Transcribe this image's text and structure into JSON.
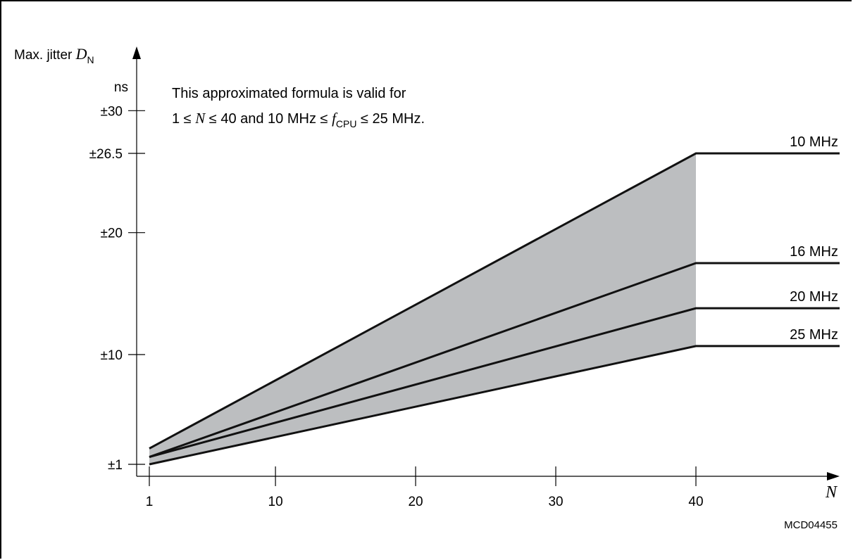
{
  "chart_data": {
    "type": "line",
    "ylabel_text": "Max. jitter ",
    "ylabel_var": "D",
    "ylabel_sub": "N",
    "yunit": "ns",
    "xlabel": "N",
    "xlim": [
      1,
      50
    ],
    "ylim": [
      0,
      34
    ],
    "x_ticks": [
      1,
      10,
      20,
      30,
      40
    ],
    "y_ticks": [
      {
        "value": 1,
        "label": "±1"
      },
      {
        "value": 10,
        "label": "±10"
      },
      {
        "value": 20,
        "label": "±20"
      },
      {
        "value": 26.5,
        "label": "±26.5"
      },
      {
        "value": 30,
        "label": "±30"
      }
    ],
    "shaded_band": {
      "color": "#bcbec0",
      "from_series": "25 MHz",
      "to_series": "10 MHz",
      "x_range": [
        1,
        40
      ]
    },
    "series": [
      {
        "name": "10 MHz",
        "x": [
          1,
          40,
          50
        ],
        "y": [
          2.3,
          26.5,
          26.5
        ]
      },
      {
        "name": "16 MHz",
        "x": [
          1,
          40,
          50
        ],
        "y": [
          1.6,
          17.5,
          17.5
        ]
      },
      {
        "name": "20 MHz",
        "x": [
          1,
          40,
          50
        ],
        "y": [
          1.6,
          13.8,
          13.8
        ]
      },
      {
        "name": "25 MHz",
        "x": [
          1,
          40,
          50
        ],
        "y": [
          1.0,
          10.7,
          10.7
        ]
      }
    ],
    "annotation": {
      "line1": "This approximated formula is valid for",
      "line2_a": "1 ≤ ",
      "line2_var1": "N",
      "line2_b": " ≤ 40 and 10 MHz ≤ ",
      "line2_var2": "f",
      "line2_sub": "CPU",
      "line2_c": " ≤ 25 MHz."
    },
    "figure_id": "MCD04455"
  }
}
